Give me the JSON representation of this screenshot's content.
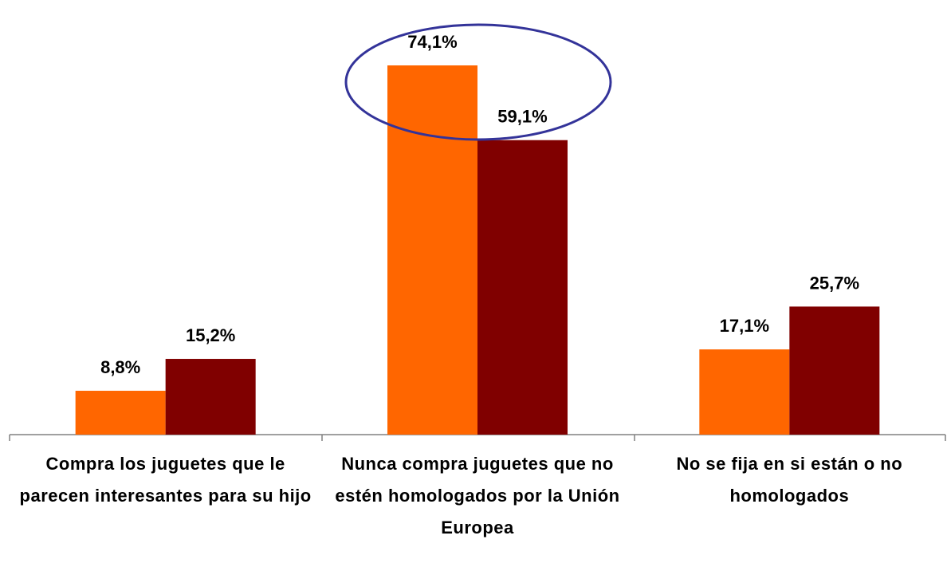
{
  "chart_data": {
    "type": "bar",
    "categories": [
      "Compra los juguetes que le parecen interesantes para su hijo",
      "Nunca compra juguetes que no estén homologados por la Unión Europea",
      "No se fija en si están o no homologados"
    ],
    "series": [
      {
        "color": "#ff6600",
        "values": [
          8.8,
          74.1,
          17.1
        ],
        "value_labels": [
          "8,8%",
          "74,1%",
          "17,1%"
        ]
      },
      {
        "color": "#800000",
        "values": [
          15.2,
          59.1,
          25.7
        ],
        "value_labels": [
          "15,2%",
          "59,1%",
          "25,7%"
        ]
      }
    ]
  }
}
